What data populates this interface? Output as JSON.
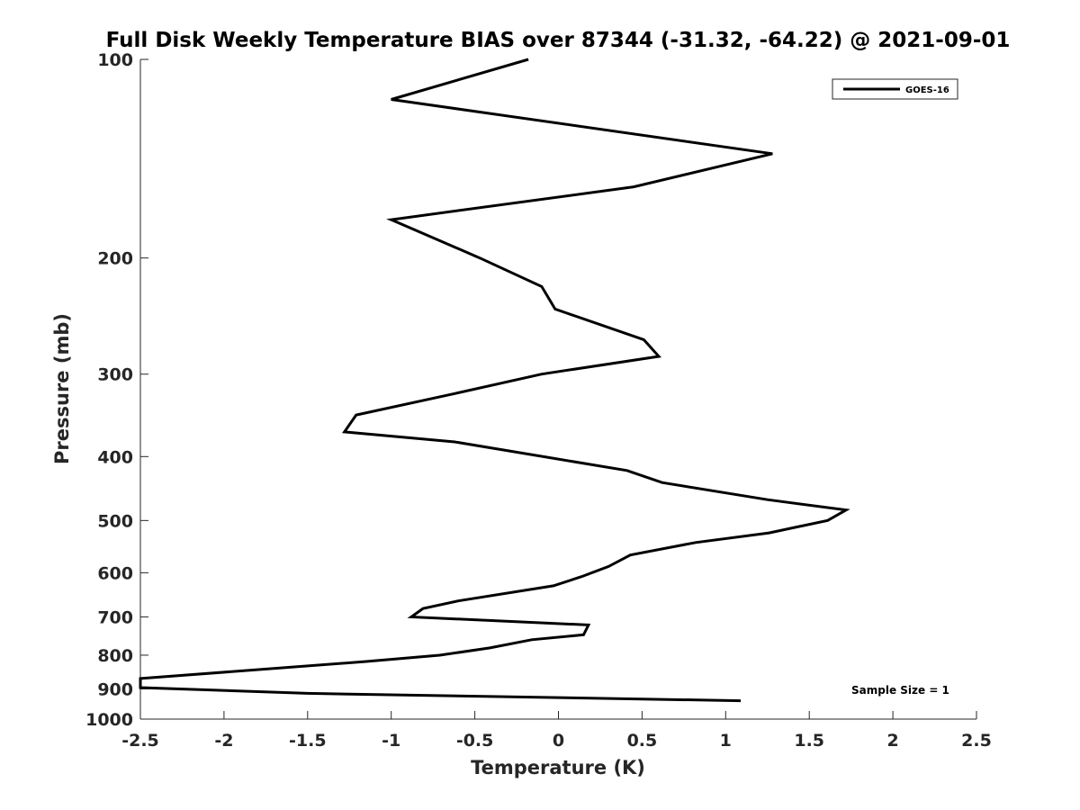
{
  "chart_data": {
    "type": "line",
    "title": "Full Disk Weekly Temperature BIAS over 87344 (-31.32, -64.22) @ 2021-09-01",
    "xlabel": "Temperature (K)",
    "ylabel": "Pressure (mb)",
    "xlim": [
      -2.5,
      2.5
    ],
    "ylim": [
      100,
      1000
    ],
    "y_scale": "log",
    "y_reversed": true,
    "grid": false,
    "legend_position": "top-right",
    "x_ticks": [
      "-2.5",
      "-2",
      "-1.5",
      "-1",
      "-0.5",
      "0",
      "0.5",
      "1",
      "1.5",
      "2",
      "2.5"
    ],
    "x_tick_values": [
      -2.5,
      -2,
      -1.5,
      -1,
      -0.5,
      0,
      0.5,
      1,
      1.5,
      2,
      2.5
    ],
    "y_ticks": [
      "100",
      "200",
      "300",
      "400",
      "500",
      "600",
      "700",
      "800",
      "900",
      "1000"
    ],
    "y_tick_values": [
      100,
      200,
      300,
      400,
      500,
      600,
      700,
      800,
      900,
      1000
    ],
    "line_color": "#000000",
    "series": [
      {
        "name": "GOES-16",
        "x": [
          -0.18,
          -1.0,
          1.28,
          0.45,
          -1.0,
          -0.47,
          -0.1,
          -0.02,
          0.51,
          0.6,
          -0.1,
          -0.62,
          -1.21,
          -1.28,
          -0.62,
          0.41,
          0.62,
          1.25,
          1.72,
          1.61,
          1.26,
          0.82,
          0.43,
          0.3,
          0.14,
          -0.03,
          -0.6,
          -0.81,
          -0.88,
          0.18,
          0.15,
          -0.16,
          -0.41,
          -0.71,
          -1.15,
          -2.5,
          -2.5,
          -1.5,
          1.09
        ],
        "y": [
          100,
          115,
          139,
          156,
          175,
          200,
          221,
          239,
          266,
          282,
          300,
          321,
          346,
          367,
          380,
          420,
          438,
          465,
          482,
          500,
          522,
          540,
          564,
          587,
          608,
          628,
          662,
          680,
          700,
          720,
          745,
          758,
          780,
          800,
          818,
          868,
          896,
          914,
          938
        ]
      }
    ],
    "annotation": "Sample Size = 1"
  }
}
